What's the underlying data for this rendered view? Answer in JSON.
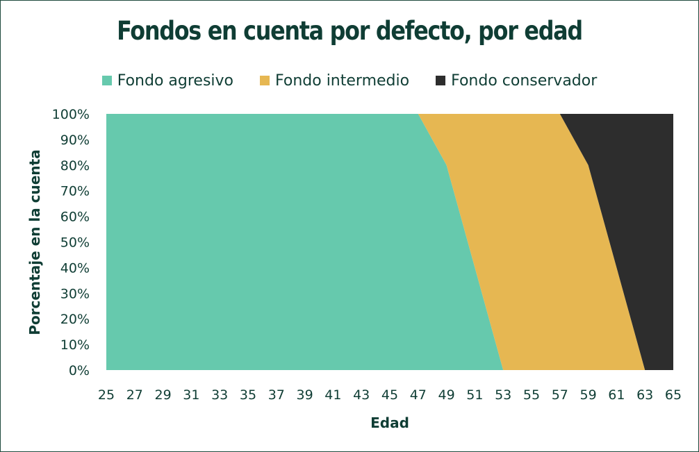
{
  "chart_data": {
    "type": "area",
    "stacked": "percent",
    "title": "Fondos en cuenta por defecto, por edad",
    "xlabel": "Edad",
    "ylabel": "Porcentaje en la cuenta",
    "x": [
      25,
      27,
      29,
      31,
      33,
      35,
      37,
      39,
      41,
      43,
      45,
      47,
      49,
      51,
      52,
      53,
      55,
      57,
      59,
      61,
      62,
      63,
      65
    ],
    "xticks": [
      "25",
      "27",
      "29",
      "31",
      "33",
      "35",
      "37",
      "39",
      "41",
      "43",
      "45",
      "47",
      "49",
      "51",
      "53",
      "55",
      "57",
      "59",
      "61",
      "63",
      "65"
    ],
    "yticks": [
      "0%",
      "10%",
      "20%",
      "30%",
      "40%",
      "50%",
      "60%",
      "70%",
      "80%",
      "90%",
      "100%"
    ],
    "ylim": [
      0,
      100
    ],
    "series": [
      {
        "name": "Fondo agresivo",
        "color": "#66c9ad",
        "values": [
          100,
          100,
          100,
          100,
          100,
          100,
          100,
          100,
          100,
          100,
          100,
          100,
          80,
          40,
          20,
          0,
          0,
          0,
          0,
          0,
          0,
          0,
          0
        ]
      },
      {
        "name": "Fondo intermedio",
        "color": "#e6b752",
        "values": [
          0,
          0,
          0,
          0,
          0,
          0,
          0,
          0,
          0,
          0,
          0,
          0,
          20,
          60,
          80,
          100,
          100,
          100,
          80,
          40,
          20,
          0,
          0
        ]
      },
      {
        "name": "Fondo conservador",
        "color": "#2d2d2d",
        "values": [
          0,
          0,
          0,
          0,
          0,
          0,
          0,
          0,
          0,
          0,
          0,
          0,
          0,
          0,
          0,
          0,
          0,
          0,
          20,
          60,
          80,
          100,
          100
        ]
      }
    ],
    "legend_position": "top"
  }
}
